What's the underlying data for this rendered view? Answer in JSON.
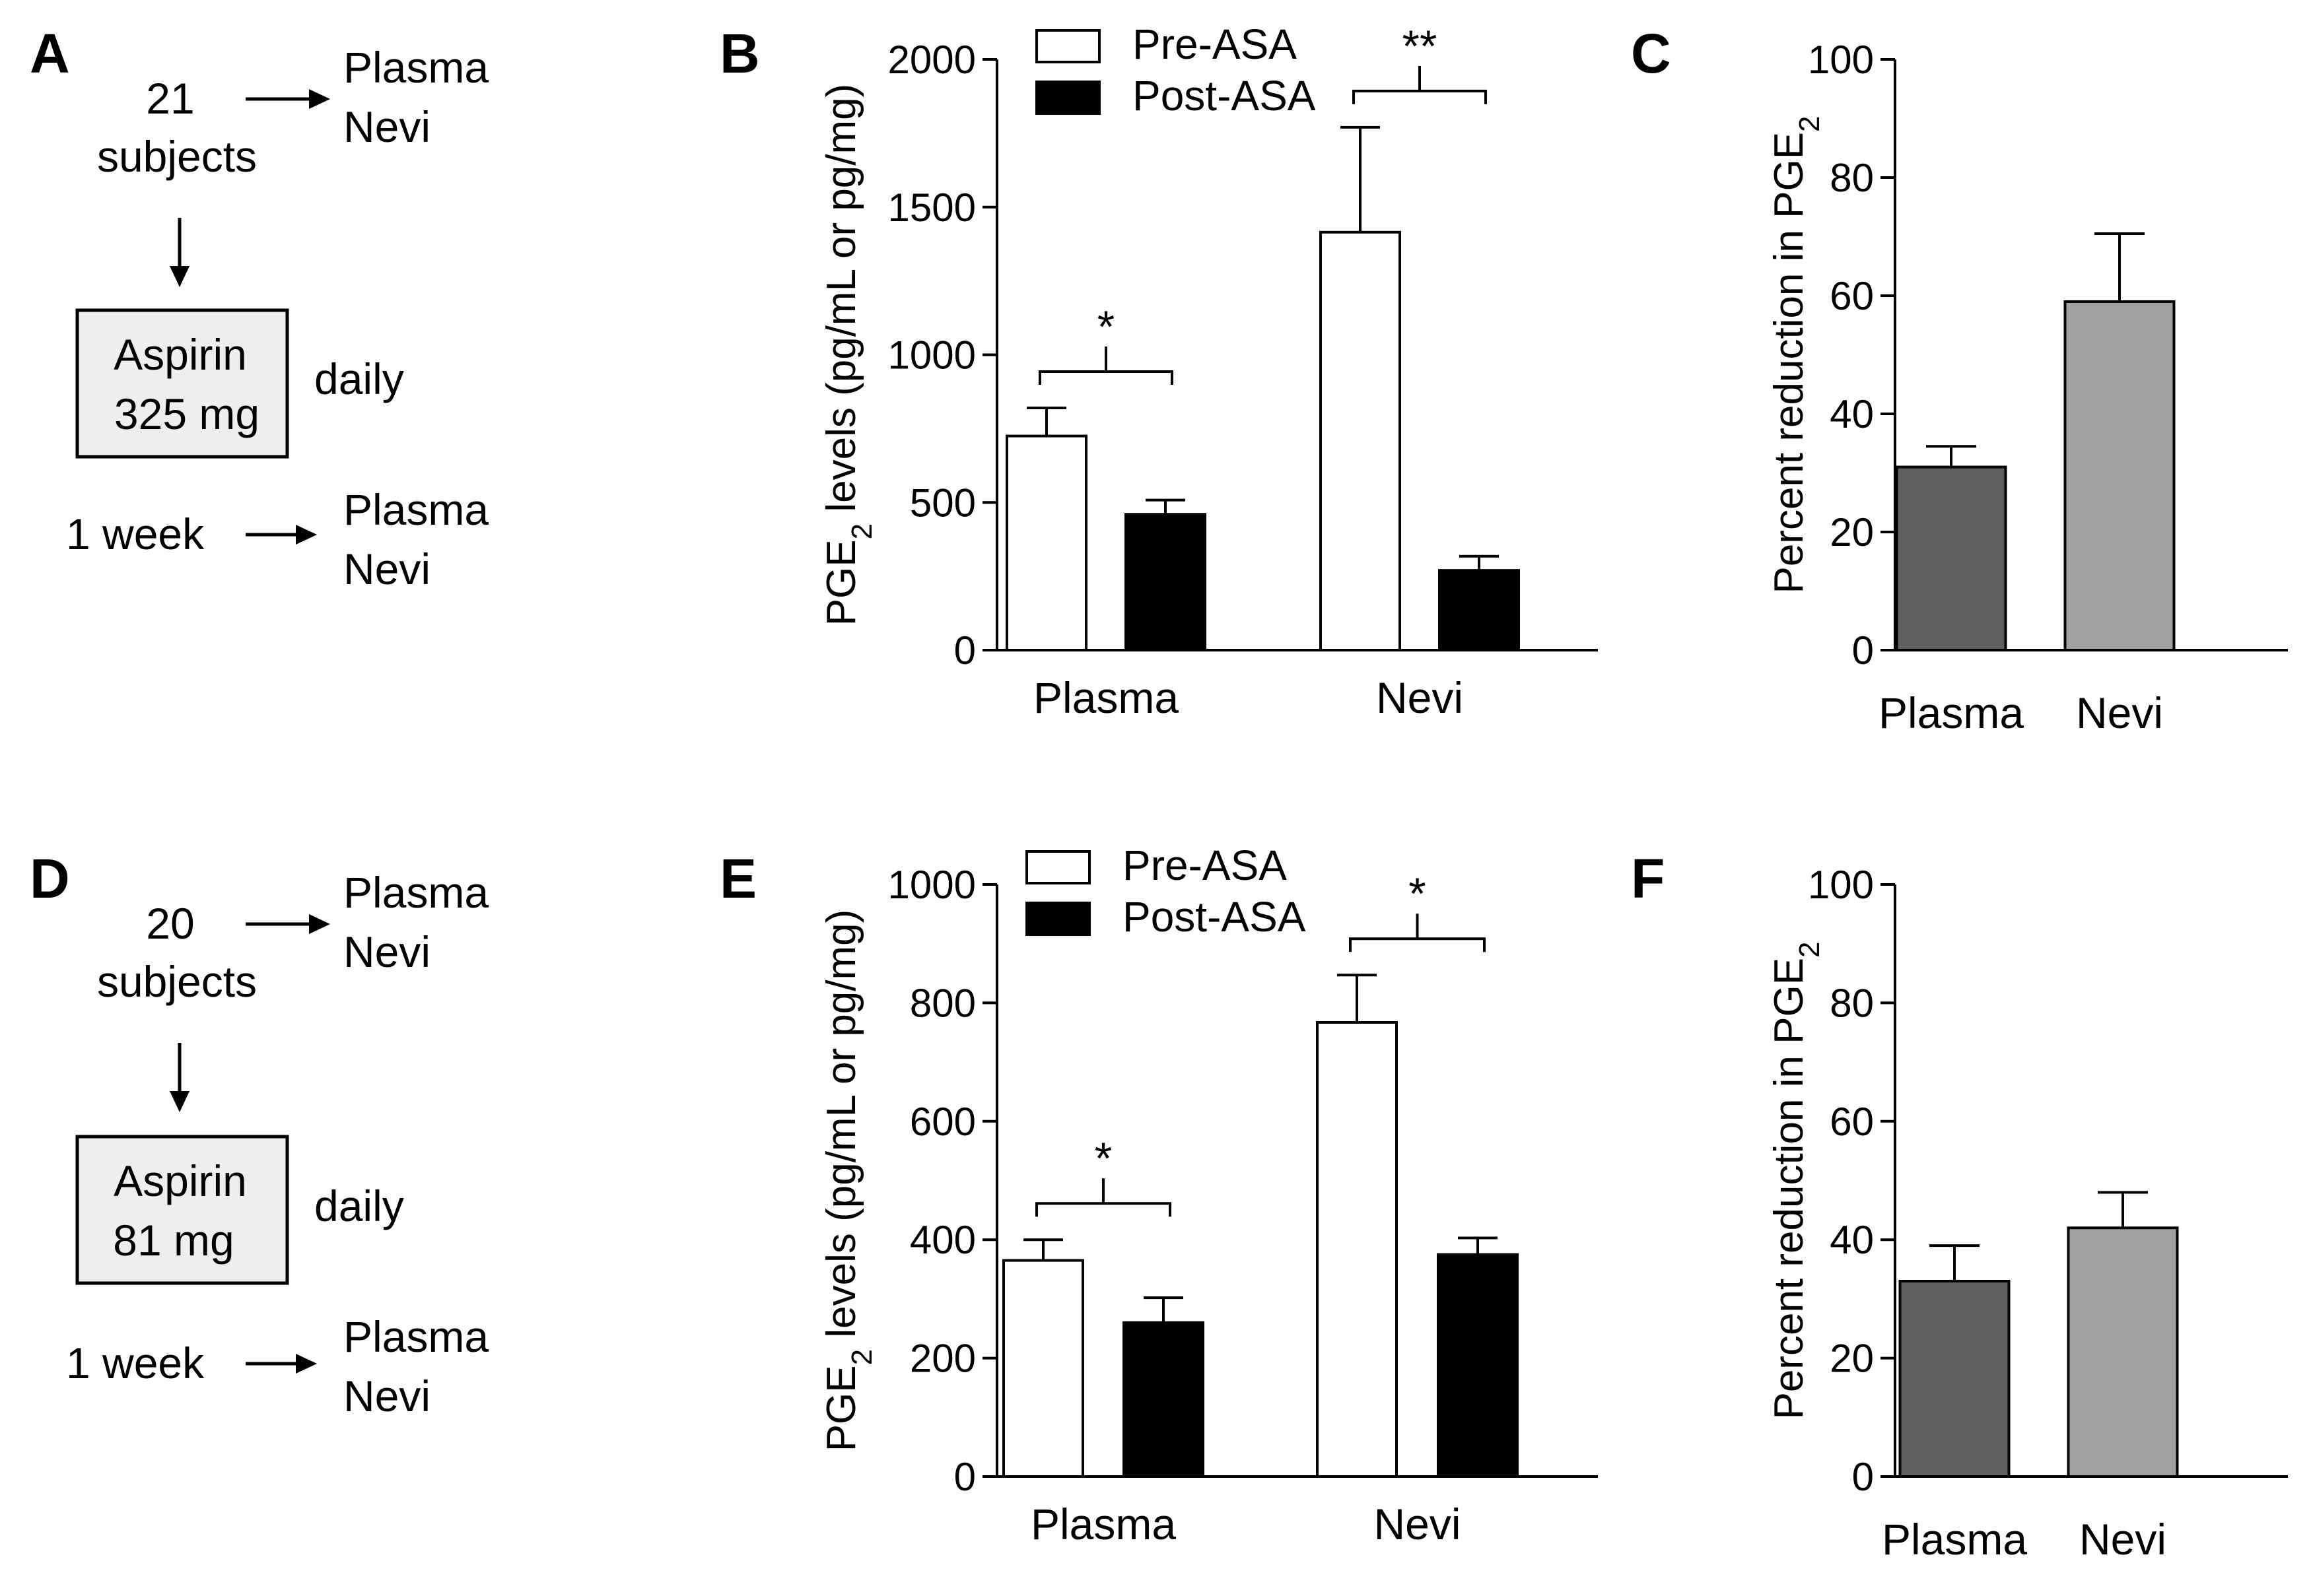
{
  "colors": {
    "pre": "#ffffff",
    "post": "#000000",
    "plasma_bar": "#606060",
    "nevi_bar": "#a0a0a2",
    "box_fill": "#eeeeee"
  },
  "flows": [
    {
      "letter": "A",
      "count": "21",
      "subjects": "subjects",
      "out1": "Plasma",
      "out2": "Nevi",
      "drug": "Aspirin",
      "dose": "325 mg",
      "freq": "daily",
      "after": "1 week",
      "out3": "Plasma",
      "out4": "Nevi"
    },
    {
      "letter": "D",
      "count": "20",
      "subjects": "subjects",
      "out1": "Plasma",
      "out2": "Nevi",
      "drug": "Aspirin",
      "dose": "81 mg",
      "freq": "daily",
      "after": "1 week",
      "out3": "Plasma",
      "out4": "Nevi"
    }
  ],
  "chart_data": [
    {
      "panel": "B",
      "type": "bar",
      "ylabel": "PGE2 levels (pg/mL or pg/mg)",
      "ylabel_main": "PGE",
      "ylabel_sub": "2",
      "ylabel_rest": " levels (pg/mL or pg/mg)",
      "ylim": [
        0,
        2000
      ],
      "yticks": [
        0,
        500,
        1000,
        1500,
        2000
      ],
      "categories": [
        "Plasma",
        "Nevi"
      ],
      "series": [
        {
          "name": "Pre-ASA",
          "values": [
            725,
            1415
          ],
          "errors": [
            95,
            355
          ]
        },
        {
          "name": "Post-ASA",
          "values": [
            460,
            270
          ],
          "errors": [
            48,
            48
          ]
        }
      ],
      "significance": [
        "*",
        "**"
      ],
      "legend": [
        "Pre-ASA",
        "Post-ASA"
      ]
    },
    {
      "panel": "C",
      "type": "bar",
      "ylabel": "Percent reduction in PGE2",
      "ylabel_main": "Percent reduction in PGE",
      "ylabel_sub": "2",
      "ylabel_rest": "",
      "ylim": [
        0,
        100
      ],
      "yticks": [
        0,
        20,
        40,
        60,
        80,
        100
      ],
      "categories": [
        "Plasma",
        "Nevi"
      ],
      "values": [
        31,
        59
      ],
      "errors": [
        3.5,
        11.5
      ]
    },
    {
      "panel": "E",
      "type": "bar",
      "ylabel": "PGE2 levels (pg/mL or pg/mg)",
      "ylabel_main": "PGE",
      "ylabel_sub": "2",
      "ylabel_rest": " levels (pg/mL or pg/mg)",
      "ylim": [
        0,
        1000
      ],
      "yticks": [
        0,
        200,
        400,
        600,
        800,
        1000
      ],
      "categories": [
        "Plasma",
        "Nevi"
      ],
      "series": [
        {
          "name": "Pre-ASA",
          "values": [
            365,
            767
          ],
          "errors": [
            35,
            80
          ]
        },
        {
          "name": "Post-ASA",
          "values": [
            260,
            375
          ],
          "errors": [
            42,
            28
          ]
        }
      ],
      "significance": [
        "*",
        "*"
      ],
      "legend": [
        "Pre-ASA",
        "Post-ASA"
      ]
    },
    {
      "panel": "F",
      "type": "bar",
      "ylabel": "Percent reduction in PGE2",
      "ylabel_main": "Percent reduction in PGE",
      "ylabel_sub": "2",
      "ylabel_rest": "",
      "ylim": [
        0,
        100
      ],
      "yticks": [
        0,
        20,
        40,
        60,
        80,
        100
      ],
      "categories": [
        "Plasma",
        "Nevi"
      ],
      "values": [
        33,
        42
      ],
      "errors": [
        6,
        6
      ]
    }
  ]
}
